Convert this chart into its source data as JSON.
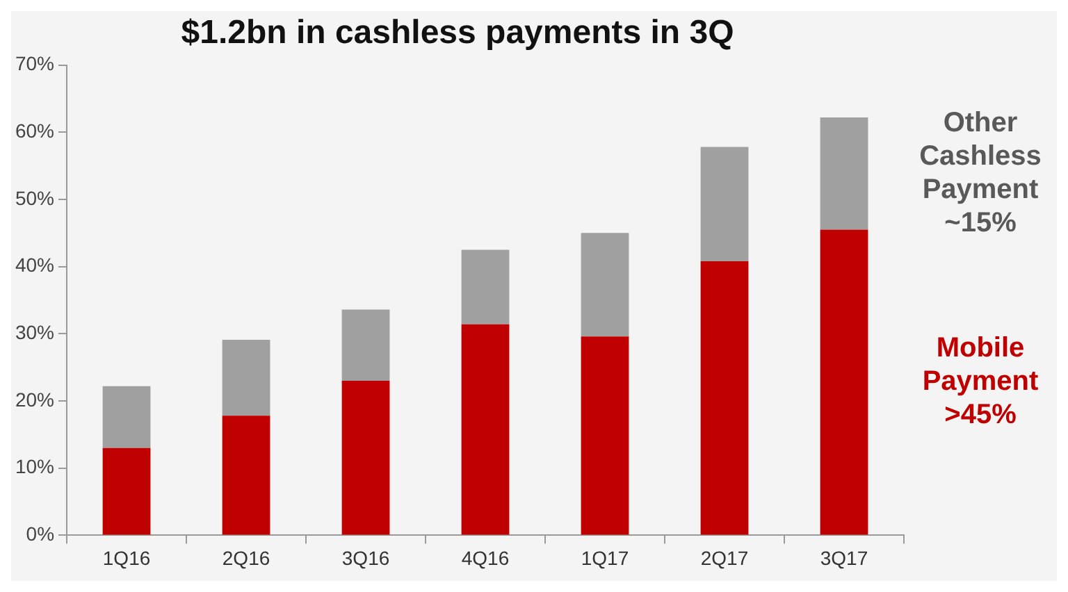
{
  "chart_data": {
    "type": "bar",
    "title": "$1.2bn in cashless payments in 3Q",
    "stacked": true,
    "categories": [
      "1Q16",
      "2Q16",
      "3Q16",
      "4Q16",
      "1Q17",
      "2Q17",
      "3Q17"
    ],
    "series": [
      {
        "name": "Mobile Payment >45%",
        "color": "#c00000",
        "values": [
          13,
          17.8,
          23,
          31.4,
          29.6,
          40.8,
          45.5
        ]
      },
      {
        "name": "Other Cashless Payment ~15%",
        "color": "#a0a0a0",
        "values": [
          9.2,
          11.3,
          10.6,
          11.1,
          15.4,
          17,
          16.7
        ]
      }
    ],
    "ylim": [
      0,
      70
    ],
    "yticks": [
      {
        "value": 0,
        "label": "0%"
      },
      {
        "value": 10,
        "label": "10%"
      },
      {
        "value": 20,
        "label": "20%"
      },
      {
        "value": 30,
        "label": "30%"
      },
      {
        "value": 40,
        "label": "40%"
      },
      {
        "value": 50,
        "label": "50%"
      },
      {
        "value": 60,
        "label": "60%"
      },
      {
        "value": 70,
        "label": "70%"
      }
    ],
    "grid": false,
    "legend": false
  }
}
